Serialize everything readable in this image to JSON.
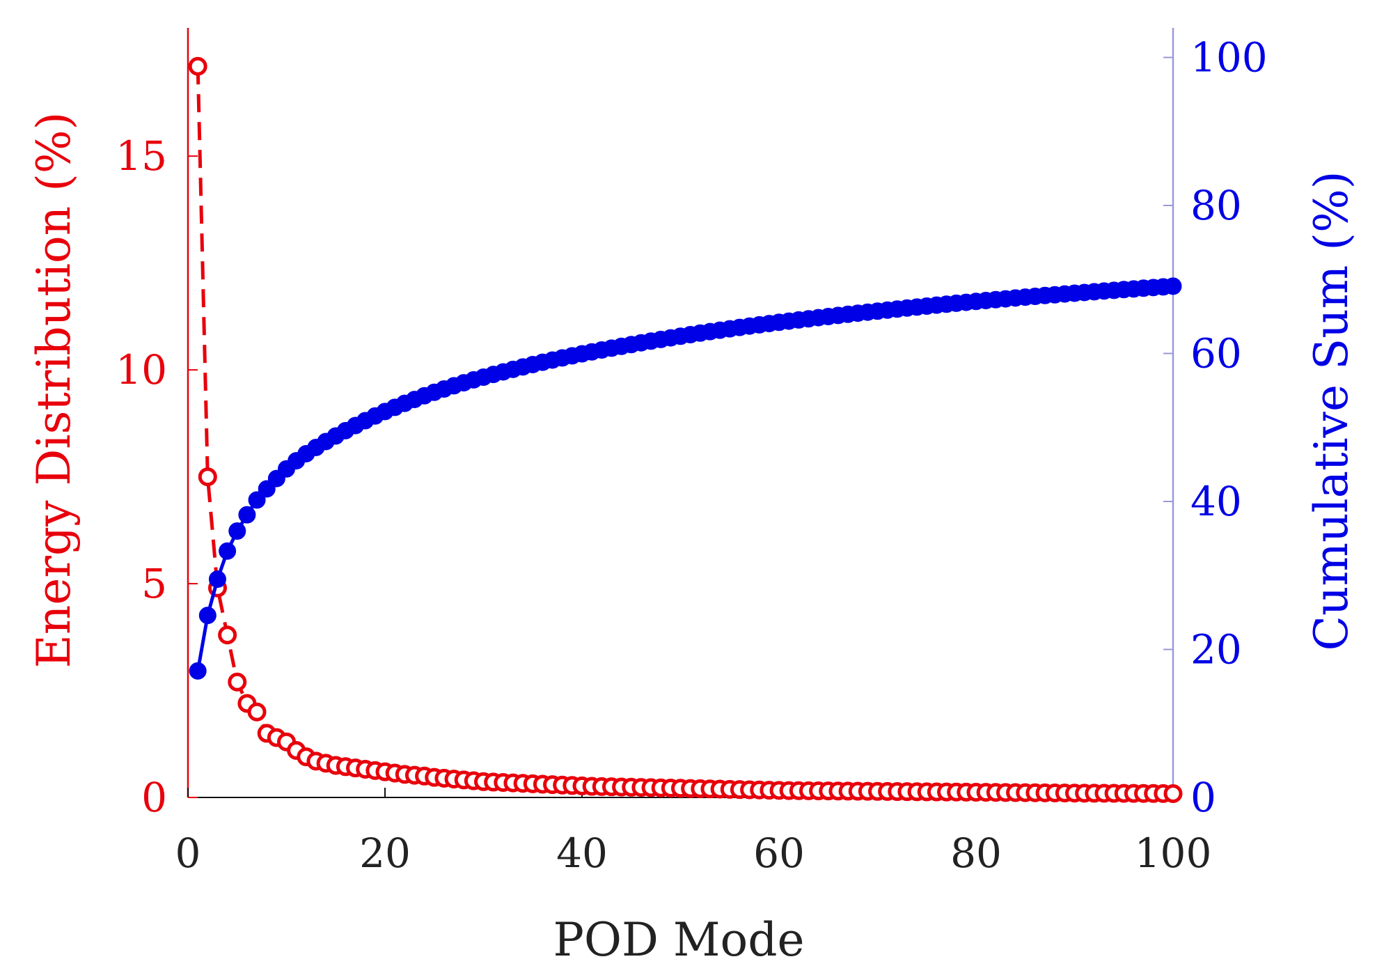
{
  "chart_data": {
    "type": "line",
    "title": "",
    "xlabel": "POD Mode",
    "ylabel_left": "Energy Distribution (%)",
    "ylabel_right": "Cumulative Sum (%)",
    "xlim": [
      0,
      100
    ],
    "ylim_left": [
      0,
      18
    ],
    "ylim_right": [
      0,
      104
    ],
    "xticks": [
      0,
      20,
      40,
      60,
      80,
      100
    ],
    "yticks_left": [
      0,
      5,
      10,
      15
    ],
    "yticks_right": [
      0,
      20,
      40,
      60,
      80,
      100
    ],
    "grid": false,
    "colors": {
      "energy": "#e8000b",
      "cumulative": "#0000e6",
      "axis": "#111111",
      "right_axis": "#9a9ad8",
      "tick_text": "#222222"
    },
    "series": [
      {
        "name": "Energy Distribution",
        "axis": "left",
        "style": "dashed-open-circles",
        "x": [
          1,
          2,
          3,
          4,
          5,
          6,
          7,
          8,
          9,
          10,
          11,
          12,
          13,
          14,
          15,
          16,
          17,
          18,
          19,
          20,
          21,
          22,
          23,
          24,
          25,
          26,
          27,
          28,
          29,
          30,
          31,
          32,
          33,
          34,
          35,
          36,
          37,
          38,
          39,
          40,
          41,
          42,
          43,
          44,
          45,
          46,
          47,
          48,
          49,
          50,
          51,
          52,
          53,
          54,
          55,
          56,
          57,
          58,
          59,
          60,
          61,
          62,
          63,
          64,
          65,
          66,
          67,
          68,
          69,
          70,
          71,
          72,
          73,
          74,
          75,
          76,
          77,
          78,
          79,
          80,
          81,
          82,
          83,
          84,
          85,
          86,
          87,
          88,
          89,
          90,
          91,
          92,
          93,
          94,
          95,
          96,
          97,
          98,
          99,
          100
        ],
        "values": [
          17.1,
          7.5,
          4.9,
          3.8,
          2.7,
          2.2,
          2.0,
          1.5,
          1.4,
          1.3,
          1.1,
          0.95,
          0.85,
          0.8,
          0.75,
          0.72,
          0.69,
          0.66,
          0.63,
          0.6,
          0.57,
          0.54,
          0.52,
          0.5,
          0.47,
          0.45,
          0.43,
          0.41,
          0.39,
          0.37,
          0.36,
          0.35,
          0.34,
          0.33,
          0.32,
          0.31,
          0.3,
          0.29,
          0.28,
          0.27,
          0.26,
          0.255,
          0.25,
          0.245,
          0.24,
          0.235,
          0.23,
          0.225,
          0.22,
          0.215,
          0.21,
          0.205,
          0.2,
          0.195,
          0.19,
          0.185,
          0.18,
          0.175,
          0.17,
          0.165,
          0.16,
          0.158,
          0.156,
          0.154,
          0.152,
          0.15,
          0.148,
          0.146,
          0.144,
          0.142,
          0.14,
          0.138,
          0.136,
          0.134,
          0.132,
          0.13,
          0.128,
          0.126,
          0.124,
          0.122,
          0.12,
          0.118,
          0.116,
          0.114,
          0.112,
          0.11,
          0.108,
          0.106,
          0.104,
          0.102,
          0.1,
          0.099,
          0.098,
          0.097,
          0.096,
          0.095,
          0.094,
          0.093,
          0.092,
          0.09
        ]
      },
      {
        "name": "Cumulative Sum",
        "axis": "right",
        "style": "solid-filled-circles",
        "x": [
          1,
          2,
          3,
          4,
          5,
          6,
          7,
          8,
          9,
          10,
          11,
          12,
          13,
          14,
          15,
          16,
          17,
          18,
          19,
          20,
          21,
          22,
          23,
          24,
          25,
          26,
          27,
          28,
          29,
          30,
          31,
          32,
          33,
          34,
          35,
          36,
          37,
          38,
          39,
          40,
          41,
          42,
          43,
          44,
          45,
          46,
          47,
          48,
          49,
          50,
          51,
          52,
          53,
          54,
          55,
          56,
          57,
          58,
          59,
          60,
          61,
          62,
          63,
          64,
          65,
          66,
          67,
          68,
          69,
          70,
          71,
          72,
          73,
          74,
          75,
          76,
          77,
          78,
          79,
          80,
          81,
          82,
          83,
          84,
          85,
          86,
          87,
          88,
          89,
          90,
          91,
          92,
          93,
          94,
          95,
          96,
          97,
          98,
          99,
          100
        ],
        "values": [
          17.1,
          24.6,
          29.5,
          33.3,
          36.0,
          38.2,
          40.2,
          41.7,
          43.1,
          44.4,
          45.5,
          46.45,
          47.3,
          48.1,
          48.85,
          49.57,
          50.26,
          50.92,
          51.55,
          52.15,
          52.72,
          53.26,
          53.78,
          54.28,
          54.75,
          55.2,
          55.63,
          56.04,
          56.43,
          56.8,
          57.16,
          57.51,
          57.85,
          58.18,
          58.5,
          58.81,
          59.11,
          59.4,
          59.68,
          59.95,
          60.21,
          60.47,
          60.72,
          60.96,
          61.2,
          61.44,
          61.67,
          61.89,
          62.11,
          62.33,
          62.54,
          62.75,
          62.95,
          63.14,
          63.33,
          63.52,
          63.7,
          63.87,
          64.04,
          64.21,
          64.37,
          64.53,
          64.68,
          64.84,
          64.99,
          65.14,
          65.29,
          65.44,
          65.58,
          65.72,
          65.86,
          66.0,
          66.14,
          66.27,
          66.4,
          66.53,
          66.66,
          66.79,
          66.91,
          67.03,
          67.15,
          67.27,
          67.38,
          67.5,
          67.61,
          67.72,
          67.83,
          67.93,
          68.04,
          68.14,
          68.24,
          68.34,
          68.44,
          68.53,
          68.63,
          68.72,
          68.82,
          68.91,
          69.0,
          69.09
        ]
      }
    ]
  }
}
